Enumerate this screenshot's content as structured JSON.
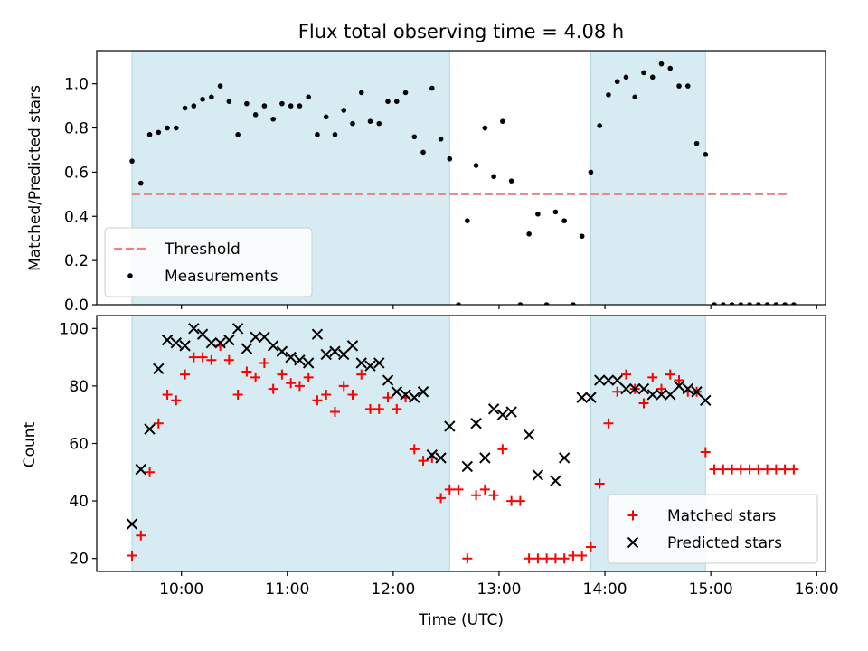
{
  "chart_data": [
    {
      "type": "scatter",
      "title": "Flux total observing time = 4.08 h",
      "xlabel": "",
      "ylabel": "Matched/Predicted stars",
      "xlim": [
        "09:12",
        "16:05"
      ],
      "ylim": [
        0,
        1.15
      ],
      "yticks": [
        "0.0",
        "0.2",
        "0.4",
        "0.6",
        "0.8",
        "1.0"
      ],
      "shaded_intervals": [
        [
          "09:32",
          "12:32"
        ],
        [
          "13:52",
          "14:57"
        ]
      ],
      "grid": false,
      "legend_position": "lower left",
      "legend": [
        "Threshold",
        "Measurements"
      ],
      "threshold": {
        "name": "Threshold",
        "color": "#f08080",
        "style": "dashed",
        "y": 0.5,
        "x_range": [
          "09:32",
          "15:45"
        ]
      },
      "series": [
        {
          "name": "Measurements",
          "color": "#000000",
          "marker": "dot",
          "x": [
            "09:32",
            "09:37",
            "09:42",
            "09:47",
            "09:52",
            "09:57",
            "10:02",
            "10:07",
            "10:12",
            "10:17",
            "10:22",
            "10:27",
            "10:32",
            "10:37",
            "10:42",
            "10:47",
            "10:52",
            "10:57",
            "11:02",
            "11:07",
            "11:12",
            "11:17",
            "11:22",
            "11:27",
            "11:32",
            "11:37",
            "11:42",
            "11:47",
            "11:52",
            "11:57",
            "12:02",
            "12:07",
            "12:12",
            "12:17",
            "12:22",
            "12:27",
            "12:32",
            "12:37",
            "12:42",
            "12:47",
            "12:52",
            "12:57",
            "13:02",
            "13:07",
            "13:12",
            "13:17",
            "13:22",
            "13:27",
            "13:32",
            "13:37",
            "13:42",
            "13:47",
            "13:52",
            "13:57",
            "14:02",
            "14:07",
            "14:12",
            "14:17",
            "14:22",
            "14:27",
            "14:32",
            "14:37",
            "14:42",
            "14:47",
            "14:52",
            "14:57",
            "15:02",
            "15:07",
            "15:12",
            "15:17",
            "15:22",
            "15:27",
            "15:32",
            "15:37",
            "15:42",
            "15:47"
          ],
          "y": [
            0.65,
            0.55,
            0.77,
            0.78,
            0.8,
            0.8,
            0.89,
            0.9,
            0.93,
            0.94,
            0.99,
            0.92,
            0.77,
            0.91,
            0.86,
            0.9,
            0.84,
            0.91,
            0.9,
            0.9,
            0.94,
            0.77,
            0.85,
            0.77,
            0.88,
            0.82,
            0.96,
            0.83,
            0.82,
            0.92,
            0.92,
            0.96,
            0.76,
            0.69,
            0.98,
            0.75,
            0.66,
            0.0,
            0.38,
            0.63,
            0.8,
            0.58,
            0.83,
            0.56,
            0.0,
            0.32,
            0.41,
            0.0,
            0.42,
            0.38,
            0.0,
            0.31,
            0.6,
            0.81,
            0.95,
            1.01,
            1.03,
            0.94,
            1.05,
            1.03,
            1.09,
            1.07,
            0.99,
            0.99,
            0.73,
            0.68,
            0.0,
            0.0,
            0.0,
            0.0,
            0.0,
            0.0,
            0.0,
            0.0,
            0.0,
            0.0
          ]
        }
      ]
    },
    {
      "type": "scatter",
      "title": "",
      "xlabel": "Time (UTC)",
      "ylabel": "Count",
      "xlim": [
        "09:12",
        "16:05"
      ],
      "ylim": [
        15.5,
        104.5
      ],
      "xticks": [
        "10:00",
        "11:00",
        "12:00",
        "13:00",
        "14:00",
        "15:00",
        "16:00"
      ],
      "yticks": [
        "20",
        "40",
        "60",
        "80",
        "100"
      ],
      "shaded_intervals": [
        [
          "09:32",
          "12:32"
        ],
        [
          "13:52",
          "14:57"
        ]
      ],
      "grid": false,
      "legend_position": "lower right",
      "legend": [
        "Matched stars",
        "Predicted stars"
      ],
      "series": [
        {
          "name": "Matched stars",
          "color": "#ff0000",
          "marker": "plus",
          "x": [
            "09:32",
            "09:37",
            "09:42",
            "09:47",
            "09:52",
            "09:57",
            "10:02",
            "10:07",
            "10:12",
            "10:17",
            "10:22",
            "10:27",
            "10:32",
            "10:37",
            "10:42",
            "10:47",
            "10:52",
            "10:57",
            "11:02",
            "11:07",
            "11:12",
            "11:17",
            "11:22",
            "11:27",
            "11:32",
            "11:37",
            "11:42",
            "11:47",
            "11:52",
            "11:57",
            "12:02",
            "12:07",
            "12:12",
            "12:17",
            "12:22",
            "12:27",
            "12:32",
            "12:37",
            "12:42",
            "12:47",
            "12:52",
            "12:57",
            "13:02",
            "13:07",
            "13:12",
            "13:17",
            "13:22",
            "13:27",
            "13:32",
            "13:37",
            "13:42",
            "13:47",
            "13:52",
            "13:57",
            "14:02",
            "14:07",
            "14:12",
            "14:17",
            "14:22",
            "14:27",
            "14:32",
            "14:37",
            "14:42",
            "14:47",
            "14:52",
            "14:57",
            "15:02",
            "15:07",
            "15:12",
            "15:17",
            "15:22",
            "15:27",
            "15:32",
            "15:37",
            "15:42",
            "15:47"
          ],
          "y": [
            21,
            28,
            50,
            67,
            77,
            75,
            84,
            90,
            90,
            89,
            94,
            89,
            77,
            85,
            83,
            88,
            79,
            84,
            81,
            80,
            83,
            75,
            77,
            71,
            80,
            77,
            84,
            72,
            72,
            76,
            72,
            76,
            58,
            54,
            55,
            41,
            44,
            44,
            20,
            42,
            44,
            42,
            58,
            40,
            40,
            20,
            20,
            20,
            20,
            20,
            21,
            21,
            24,
            46,
            67,
            78,
            84,
            79,
            74,
            83,
            79,
            84,
            82,
            78,
            78,
            57,
            51,
            51,
            51,
            51,
            51,
            51,
            51,
            51,
            51,
            51
          ]
        },
        {
          "name": "Predicted stars",
          "color": "#000000",
          "marker": "x",
          "x": [
            "09:32",
            "09:37",
            "09:42",
            "09:47",
            "09:52",
            "09:57",
            "10:02",
            "10:07",
            "10:12",
            "10:17",
            "10:22",
            "10:27",
            "10:32",
            "10:37",
            "10:42",
            "10:47",
            "10:52",
            "10:57",
            "11:02",
            "11:07",
            "11:12",
            "11:17",
            "11:22",
            "11:27",
            "11:32",
            "11:37",
            "11:42",
            "11:47",
            "11:52",
            "11:57",
            "12:02",
            "12:07",
            "12:12",
            "12:17",
            "12:22",
            "12:27",
            "12:32",
            "12:37",
            "12:42",
            "12:47",
            "12:52",
            "12:57",
            "13:02",
            "13:07",
            "13:12",
            "13:17",
            "13:22",
            "13:27",
            "13:32",
            "13:37",
            "13:42",
            "13:47",
            "13:52",
            "13:57",
            "14:02",
            "14:07",
            "14:12",
            "14:17",
            "14:22",
            "14:27",
            "14:32",
            "14:37",
            "14:42",
            "14:47",
            "14:52",
            "14:57"
          ],
          "y": [
            32,
            51,
            65,
            86,
            96,
            95,
            94,
            100,
            98,
            95,
            95,
            96,
            100,
            93,
            97,
            97,
            94,
            92,
            90,
            89,
            88,
            98,
            91,
            92,
            91,
            94,
            88,
            87,
            88,
            82,
            78,
            77,
            76,
            78,
            56,
            55,
            66,
            null,
            52,
            67,
            55,
            72,
            70,
            71,
            null,
            63,
            49,
            null,
            47,
            55,
            null,
            76,
            76,
            82,
            82,
            82,
            79,
            79,
            79,
            77,
            77,
            77,
            80,
            79,
            78,
            75
          ]
        }
      ]
    }
  ]
}
